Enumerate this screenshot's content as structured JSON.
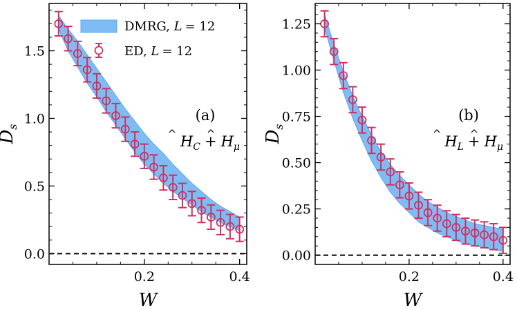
{
  "colors": {
    "band_fill": "#7fbcf5",
    "band_edge": "#5aa7ee",
    "marker": "#d0305f",
    "zero_line": "#000000"
  },
  "legend": {
    "dmrg": {
      "method": "DMRG",
      "L_label": "L",
      "L_value": "= 12"
    },
    "ed": {
      "method": "ED",
      "L_label": "L",
      "L_value": "= 12"
    }
  },
  "chart_data": [
    {
      "type": "line",
      "panel": "(a)",
      "title": "",
      "xlabel": "W",
      "ylabel": "D_s",
      "ylabel_main": "D",
      "ylabel_sub": "s",
      "hamiltonian": {
        "first": "H",
        "first_sub": "C",
        "plus": "+",
        "second": "H",
        "second_sub": "μ"
      },
      "xlim": [
        0.0,
        0.415
      ],
      "ylim": [
        -0.08,
        1.85
      ],
      "xticks": [
        0.2,
        0.4
      ],
      "xtick_labels": [
        "0.2",
        "0.4"
      ],
      "yticks": [
        0.0,
        0.5,
        1.0,
        1.5
      ],
      "ytick_labels": [
        "0.0",
        "0.5",
        "1.0",
        "1.5"
      ],
      "reference_line": 0,
      "series": [
        {
          "name": "DMRG, L = 12",
          "kind": "band",
          "x": [
            0.02,
            0.04,
            0.06,
            0.08,
            0.1,
            0.12,
            0.14,
            0.16,
            0.18,
            0.2,
            0.22,
            0.24,
            0.26,
            0.28,
            0.3,
            0.32,
            0.34,
            0.36,
            0.38,
            0.4
          ],
          "lower": [
            1.66,
            1.5,
            1.38,
            1.26,
            1.16,
            1.05,
            0.95,
            0.85,
            0.75,
            0.66,
            0.59,
            0.52,
            0.46,
            0.41,
            0.36,
            0.31,
            0.27,
            0.23,
            0.2,
            0.17
          ],
          "upper": [
            1.76,
            1.66,
            1.57,
            1.47,
            1.37,
            1.27,
            1.17,
            1.07,
            0.98,
            0.89,
            0.81,
            0.74,
            0.66,
            0.59,
            0.52,
            0.46,
            0.4,
            0.35,
            0.31,
            0.27
          ]
        },
        {
          "name": "ED, L = 12",
          "kind": "errorbar",
          "x": [
            0.02,
            0.04,
            0.06,
            0.08,
            0.1,
            0.12,
            0.14,
            0.16,
            0.18,
            0.2,
            0.22,
            0.24,
            0.26,
            0.28,
            0.3,
            0.32,
            0.34,
            0.36,
            0.38,
            0.4
          ],
          "y": [
            1.7,
            1.59,
            1.48,
            1.36,
            1.24,
            1.13,
            1.02,
            0.92,
            0.81,
            0.72,
            0.64,
            0.56,
            0.49,
            0.43,
            0.37,
            0.32,
            0.27,
            0.23,
            0.2,
            0.18
          ],
          "err": [
            0.09,
            0.09,
            0.09,
            0.09,
            0.09,
            0.09,
            0.09,
            0.09,
            0.09,
            0.09,
            0.09,
            0.09,
            0.09,
            0.09,
            0.09,
            0.09,
            0.09,
            0.09,
            0.09,
            0.09
          ]
        }
      ]
    },
    {
      "type": "line",
      "panel": "(b)",
      "title": "",
      "xlabel": "W",
      "ylabel": "D_s",
      "ylabel_main": "D",
      "ylabel_sub": "s",
      "hamiltonian": {
        "first": "H",
        "first_sub": "L",
        "plus": "+",
        "second": "H",
        "second_sub": "μ"
      },
      "xlim": [
        0.0,
        0.415
      ],
      "ylim": [
        -0.05,
        1.36
      ],
      "xticks": [
        0.2,
        0.4
      ],
      "xtick_labels": [
        "0.2",
        "0.4"
      ],
      "yticks": [
        0.0,
        0.25,
        0.5,
        0.75,
        1.0,
        1.25
      ],
      "ytick_labels": [
        "0.00",
        "0.25",
        "0.50",
        "0.75",
        "1.00",
        "1.25"
      ],
      "reference_line": 0,
      "series": [
        {
          "name": "DMRG, L = 12",
          "kind": "band",
          "x": [
            0.02,
            0.04,
            0.06,
            0.08,
            0.1,
            0.12,
            0.14,
            0.16,
            0.18,
            0.2,
            0.22,
            0.24,
            0.26,
            0.28,
            0.3,
            0.32,
            0.34,
            0.36,
            0.38,
            0.4
          ],
          "lower": [
            1.23,
            1.05,
            0.88,
            0.74,
            0.62,
            0.51,
            0.42,
            0.34,
            0.28,
            0.23,
            0.18,
            0.15,
            0.12,
            0.1,
            0.08,
            0.06,
            0.05,
            0.04,
            0.03,
            0.02
          ],
          "upper": [
            1.3,
            1.14,
            0.99,
            0.86,
            0.75,
            0.65,
            0.56,
            0.49,
            0.43,
            0.38,
            0.33,
            0.29,
            0.26,
            0.23,
            0.21,
            0.19,
            0.17,
            0.16,
            0.15,
            0.14
          ]
        },
        {
          "name": "ED, L = 12",
          "kind": "errorbar",
          "x": [
            0.02,
            0.04,
            0.06,
            0.08,
            0.1,
            0.12,
            0.14,
            0.16,
            0.18,
            0.2,
            0.22,
            0.24,
            0.26,
            0.28,
            0.3,
            0.32,
            0.34,
            0.36,
            0.38,
            0.4
          ],
          "y": [
            1.25,
            1.1,
            0.97,
            0.84,
            0.73,
            0.62,
            0.53,
            0.45,
            0.38,
            0.32,
            0.27,
            0.23,
            0.2,
            0.17,
            0.15,
            0.13,
            0.12,
            0.11,
            0.1,
            0.08
          ],
          "err": [
            0.07,
            0.07,
            0.07,
            0.07,
            0.07,
            0.07,
            0.07,
            0.07,
            0.07,
            0.07,
            0.07,
            0.07,
            0.07,
            0.07,
            0.07,
            0.07,
            0.07,
            0.07,
            0.07,
            0.07
          ]
        }
      ]
    }
  ]
}
